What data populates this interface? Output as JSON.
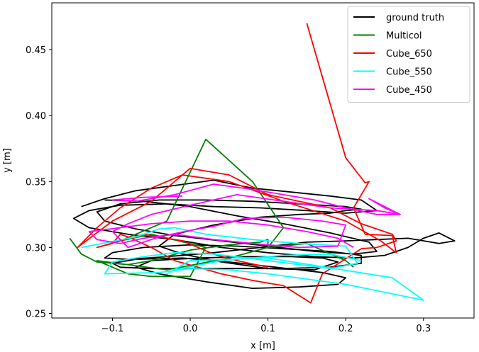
{
  "chart_data": {
    "type": "line",
    "title": "",
    "xlabel": "x [m]",
    "ylabel": "y [m]",
    "xlim": [
      -0.178,
      0.365
    ],
    "ylim": [
      0.2465,
      0.4855
    ],
    "xticks": [
      -0.1,
      0.0,
      0.1,
      0.2,
      0.3
    ],
    "xtick_labels": [
      "−0.1",
      "0.0",
      "0.1",
      "0.2",
      "0.3"
    ],
    "yticks": [
      0.25,
      0.3,
      0.35,
      0.4,
      0.45
    ],
    "ytick_labels": [
      "0.25",
      "0.30",
      "0.35",
      "0.40",
      "0.45"
    ],
    "grid": false,
    "legend_position": "top-right",
    "series": [
      {
        "name": "ground truth",
        "color": "#000000",
        "x": [
          -0.14,
          -0.11,
          -0.07,
          -0.02,
          0.03,
          0.08,
          0.13,
          0.18,
          0.22,
          0.24,
          0.2,
          0.15,
          0.09,
          0.03,
          -0.03,
          -0.09,
          -0.13,
          -0.15,
          -0.13,
          -0.08,
          -0.02,
          0.04,
          0.1,
          0.16,
          0.21,
          0.25,
          0.28,
          0.3,
          0.32,
          0.34,
          0.32,
          0.28,
          0.24,
          0.2,
          0.15,
          0.09,
          0.03,
          -0.03,
          -0.08,
          -0.11,
          -0.1,
          -0.06,
          0.0,
          0.06,
          0.12,
          0.18,
          0.22,
          0.22,
          0.18,
          0.12,
          0.06,
          0.0,
          -0.05,
          -0.09,
          -0.1,
          -0.07,
          -0.01,
          0.05,
          0.11,
          0.17,
          0.2,
          0.19,
          0.14,
          0.08,
          0.02,
          -0.04,
          -0.07,
          -0.05,
          0.01,
          0.07,
          0.13,
          0.17,
          0.19,
          0.16,
          0.1,
          0.04,
          -0.01,
          -0.04,
          -0.02,
          0.03,
          0.09,
          0.14,
          0.18,
          0.2,
          0.22,
          0.2,
          0.14,
          0.08,
          0.02,
          -0.04,
          -0.09,
          -0.12,
          -0.11,
          -0.07,
          -0.02,
          0.04,
          0.1,
          0.16,
          0.21,
          0.24,
          0.23,
          0.18,
          0.12,
          0.06,
          0.0,
          -0.06,
          -0.11
        ],
        "y": [
          0.331,
          0.337,
          0.343,
          0.347,
          0.351,
          0.345,
          0.342,
          0.339,
          0.336,
          0.328,
          0.326,
          0.328,
          0.33,
          0.331,
          0.333,
          0.332,
          0.328,
          0.322,
          0.315,
          0.31,
          0.306,
          0.3,
          0.296,
          0.293,
          0.292,
          0.294,
          0.3,
          0.307,
          0.311,
          0.305,
          0.303,
          0.307,
          0.306,
          0.305,
          0.304,
          0.3,
          0.296,
          0.293,
          0.291,
          0.292,
          0.296,
          0.3,
          0.302,
          0.301,
          0.299,
          0.297,
          0.294,
          0.288,
          0.285,
          0.284,
          0.284,
          0.284,
          0.284,
          0.285,
          0.288,
          0.291,
          0.292,
          0.289,
          0.285,
          0.281,
          0.277,
          0.272,
          0.27,
          0.269,
          0.274,
          0.28,
          0.285,
          0.29,
          0.292,
          0.293,
          0.293,
          0.292,
          0.289,
          0.283,
          0.284,
          0.289,
          0.295,
          0.301,
          0.31,
          0.317,
          0.323,
          0.325,
          0.326,
          0.328,
          0.329,
          0.331,
          0.333,
          0.335,
          0.336,
          0.336,
          0.333,
          0.327,
          0.32,
          0.314,
          0.309,
          0.305,
          0.301,
          0.297,
          0.295,
          0.297,
          0.304,
          0.311,
          0.318,
          0.324,
          0.331,
          0.335,
          0.336
        ]
      },
      {
        "name": "Multicol",
        "color": "#008000",
        "x": [
          -0.155,
          -0.14,
          -0.12,
          -0.08,
          -0.05,
          0.0,
          0.05,
          0.09,
          0.1,
          0.1,
          0.05,
          -0.03,
          -0.12,
          -0.08,
          -0.05,
          0.0,
          0.02,
          -0.05,
          -0.09,
          -0.03,
          0.02,
          0.08,
          0.12,
          0.1,
          0.15,
          0.2,
          0.21
        ],
        "y": [
          0.307,
          0.295,
          0.289,
          0.287,
          0.29,
          0.298,
          0.302,
          0.304,
          0.306,
          0.3,
          0.292,
          0.283,
          0.29,
          0.28,
          0.278,
          0.278,
          0.3,
          0.31,
          0.305,
          0.32,
          0.382,
          0.35,
          0.315,
          0.3,
          0.303,
          0.29,
          0.285
        ]
      },
      {
        "name": "Cube_650",
        "color": "#ff0000",
        "x": [
          0.15,
          0.2,
          0.225,
          0.23,
          0.21,
          0.225,
          0.26,
          0.265,
          0.245,
          0.2,
          0.12,
          0.05,
          -0.01,
          -0.05,
          -0.09,
          -0.12,
          -0.145,
          -0.1,
          -0.05,
          0.0,
          0.05,
          0.1,
          0.14,
          0.18,
          0.22,
          0.26,
          0.265,
          0.24,
          0.22,
          0.17,
          0.155,
          0.12,
          0.08,
          0.04,
          0.01,
          -0.02,
          -0.05,
          -0.08,
          -0.09,
          -0.1,
          -0.12,
          -0.06,
          -0.01,
          0.03,
          0.06,
          0.1
        ],
        "y": [
          0.47,
          0.368,
          0.349,
          0.35,
          0.33,
          0.31,
          0.309,
          0.296,
          0.305,
          0.32,
          0.335,
          0.35,
          0.355,
          0.345,
          0.33,
          0.315,
          0.3,
          0.32,
          0.335,
          0.36,
          0.355,
          0.34,
          0.335,
          0.33,
          0.318,
          0.31,
          0.305,
          0.3,
          0.299,
          0.28,
          0.258,
          0.271,
          0.275,
          0.28,
          0.285,
          0.29,
          0.3,
          0.308,
          0.31,
          0.303,
          0.3,
          0.31,
          0.305,
          0.295,
          0.29,
          0.285
        ]
      },
      {
        "name": "Cube_550",
        "color": "#00ffff",
        "x": [
          -0.14,
          -0.07,
          -0.04,
          -0.02,
          0.02,
          0.08,
          0.14,
          0.2,
          0.215,
          0.18,
          0.1,
          0.03,
          -0.02,
          -0.06,
          -0.1,
          -0.11,
          -0.04,
          0.0,
          0.05,
          0.1,
          0.2,
          0.3,
          0.26,
          0.1,
          0.0,
          -0.03,
          -0.02,
          0.04,
          0.12,
          0.18,
          0.22
        ],
        "y": [
          0.3,
          0.308,
          0.314,
          0.315,
          0.31,
          0.306,
          0.303,
          0.301,
          0.288,
          0.284,
          0.29,
          0.295,
          0.296,
          0.293,
          0.289,
          0.28,
          0.281,
          0.284,
          0.283,
          0.28,
          0.272,
          0.26,
          0.277,
          0.292,
          0.29,
          0.28,
          0.283,
          0.29,
          0.294,
          0.295,
          0.29
        ]
      },
      {
        "name": "Cube_450",
        "color": "#ff00ff",
        "x": [
          -0.01,
          -0.06,
          -0.1,
          -0.07,
          -0.02,
          0.03,
          0.08,
          0.12,
          0.16,
          0.2,
          0.24,
          0.27,
          0.23,
          0.25,
          0.27,
          0.24,
          0.18,
          0.12,
          0.06,
          0.0,
          -0.05,
          -0.08,
          -0.1,
          -0.08,
          -0.04,
          0.0,
          0.03,
          0.07,
          0.12,
          0.17,
          0.2,
          0.19,
          0.14,
          0.08,
          0.03,
          -0.02,
          -0.06,
          -0.09,
          -0.12,
          -0.13,
          -0.09,
          -0.05,
          0.0,
          0.05,
          0.1,
          0.15,
          0.19,
          0.21
        ],
        "y": [
          0.339,
          0.338,
          0.336,
          0.335,
          0.34,
          0.348,
          0.344,
          0.34,
          0.336,
          0.33,
          0.325,
          0.325,
          0.337,
          0.33,
          0.325,
          0.328,
          0.33,
          0.335,
          0.34,
          0.332,
          0.325,
          0.318,
          0.312,
          0.3,
          0.308,
          0.313,
          0.316,
          0.322,
          0.323,
          0.32,
          0.317,
          0.301,
          0.3,
          0.303,
          0.306,
          0.31,
          0.307,
          0.303,
          0.306,
          0.312,
          0.315,
          0.318,
          0.32,
          0.32,
          0.317,
          0.312,
          0.307,
          0.3
        ]
      }
    ]
  }
}
